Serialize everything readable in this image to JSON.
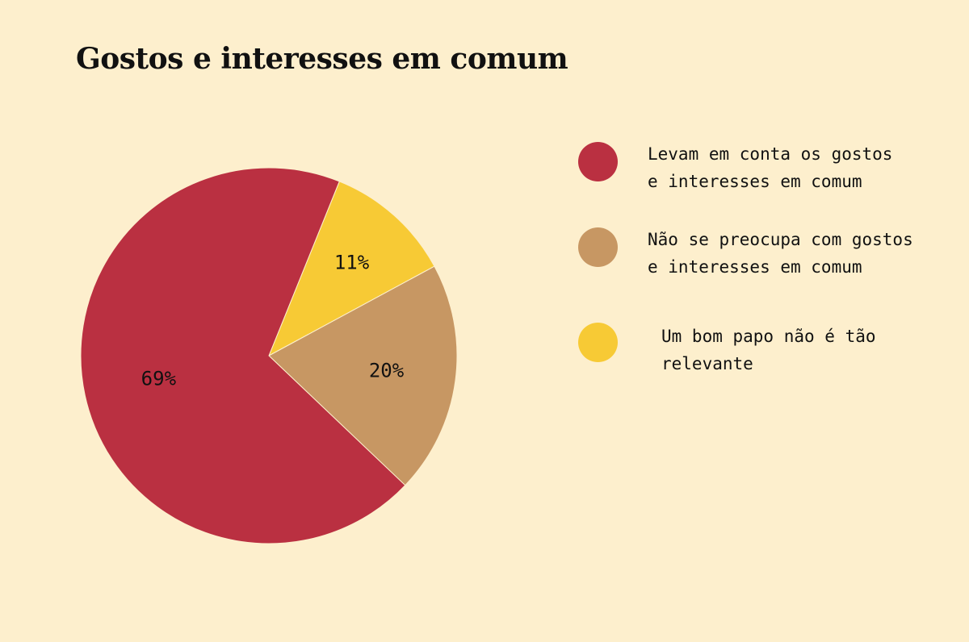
{
  "chart_data": {
    "type": "pie",
    "title": "Gostos e interesses em comum",
    "slices": [
      {
        "label": "Levam em conta os gostos\ne interesses em comum",
        "value": 69,
        "display": "69%",
        "color": "#BA3041"
      },
      {
        "label": "Não se preocupa com gostos\ne interesses em comum",
        "value": 20,
        "display": "20%",
        "color": "#C79763"
      },
      {
        "label": "Um bom papo não é tão\nrelevante",
        "value": 11,
        "display": "11%",
        "color": "#F7CA35"
      }
    ],
    "legend_position": "right"
  },
  "colors": {
    "background": "#FDEFCD",
    "text": "#111111"
  }
}
